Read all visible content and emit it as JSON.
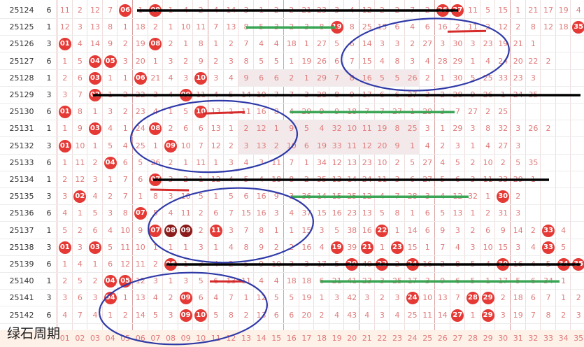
{
  "watermark": "绿石周期",
  "colors": {
    "ball": "#e53935",
    "ball_dark": "#8b1a1a",
    "miss_text": "#e07a7a",
    "black_line": "#000000",
    "green_line": "#3aa655",
    "red_line": "#d62b2b",
    "circle": "#2f3aa8"
  },
  "rows": [
    {
      "issue": "25124",
      "count": "6",
      "cells": [
        "11",
        "2",
        "12",
        "7",
        "06",
        "1",
        "09",
        "1",
        "4",
        "2",
        "4",
        "14",
        "3",
        "1",
        "2",
        "2",
        "21",
        "23",
        "3",
        "4",
        "12",
        "2",
        "2",
        "7",
        "2",
        "26",
        "27",
        "11",
        "5",
        "15",
        "1",
        "21",
        "17",
        "19",
        "4"
      ]
    },
    {
      "issue": "25125",
      "count": "1",
      "cells": [
        "12",
        "3",
        "13",
        "8",
        "1",
        "18",
        "2",
        "1",
        "10",
        "11",
        "7",
        "13",
        "8",
        "5",
        "3",
        "2",
        "3",
        "8",
        "19",
        "8",
        "25",
        "15",
        "6",
        "4",
        "6",
        "16",
        "2",
        "11",
        "2",
        "12",
        "2",
        "8",
        "12",
        "18",
        "35"
      ]
    },
    {
      "issue": "25126",
      "count": "3",
      "cells": [
        "01",
        "4",
        "14",
        "9",
        "2",
        "19",
        "08",
        "2",
        "1",
        "8",
        "1",
        "2",
        "7",
        "4",
        "4",
        "18",
        "1",
        "27",
        "5",
        "6",
        "14",
        "3",
        "3",
        "2",
        "27",
        "3",
        "30",
        "3",
        "23",
        "19",
        "21",
        "1"
      ]
    },
    {
      "issue": "25127",
      "count": "6",
      "cells": [
        "1",
        "5",
        "04",
        "05",
        "3",
        "20",
        "1",
        "3",
        "2",
        "9",
        "2",
        "3",
        "8",
        "5",
        "5",
        "1",
        "19",
        "26",
        "6",
        "7",
        "15",
        "4",
        "8",
        "3",
        "4",
        "28",
        "29",
        "1",
        "4",
        "24",
        "20",
        "22",
        "2"
      ]
    },
    {
      "issue": "25128",
      "count": "1",
      "cells": [
        "2",
        "6",
        "03",
        "1",
        "1",
        "06",
        "21",
        "4",
        "3",
        "10",
        "3",
        "4",
        "9",
        "6",
        "6",
        "2",
        "1",
        "29",
        "7",
        "8",
        "16",
        "5",
        "5",
        "26",
        "2",
        "1",
        "30",
        "5",
        "25",
        "33",
        "23",
        "3"
      ]
    },
    {
      "issue": "25129",
      "count": "3",
      "cells": [
        "3",
        "7",
        "02",
        "1",
        "2",
        "22",
        "3",
        "4",
        "09",
        "11",
        "4",
        "5",
        "14",
        "10",
        "7",
        "7",
        "3",
        "28",
        "8",
        "9",
        "17",
        "6",
        "6",
        "27",
        "3",
        "2",
        "28",
        "9",
        "26",
        "1",
        "24",
        "35"
      ]
    },
    {
      "issue": "25130",
      "count": "6",
      "cells": [
        "01",
        "8",
        "1",
        "3",
        "2",
        "23",
        "4",
        "1",
        "5",
        "10",
        "13",
        "1",
        "11",
        "16",
        "8",
        "4",
        "29",
        "9",
        "9",
        "18",
        "7",
        "7",
        "27",
        "1",
        "29",
        "3",
        "7",
        "27",
        "2",
        "25"
      ]
    },
    {
      "issue": "25131",
      "count": "1",
      "cells": [
        "1",
        "9",
        "03",
        "4",
        "1",
        "24",
        "08",
        "2",
        "6",
        "6",
        "13",
        "1",
        "2",
        "12",
        "1",
        "9",
        "5",
        "4",
        "32",
        "10",
        "11",
        "19",
        "8",
        "25",
        "3",
        "1",
        "29",
        "3",
        "8",
        "32",
        "3",
        "26",
        "2"
      ]
    },
    {
      "issue": "25132",
      "count": "3",
      "cells": [
        "01",
        "10",
        "1",
        "5",
        "4",
        "25",
        "1",
        "09",
        "10",
        "7",
        "12",
        "2",
        "3",
        "13",
        "2",
        "10",
        "6",
        "19",
        "33",
        "11",
        "12",
        "20",
        "9",
        "1",
        "4",
        "2",
        "3",
        "1",
        "4",
        "27",
        "3"
      ]
    },
    {
      "issue": "25133",
      "count": "6",
      "cells": [
        "1",
        "11",
        "2",
        "04",
        "6",
        "5",
        "26",
        "2",
        "1",
        "11",
        "1",
        "3",
        "4",
        "3",
        "11",
        "7",
        "1",
        "34",
        "12",
        "13",
        "23",
        "10",
        "2",
        "5",
        "27",
        "4",
        "5",
        "2",
        "10",
        "2",
        "5",
        "35"
      ]
    },
    {
      "issue": "25134",
      "count": "1",
      "cells": [
        "2",
        "12",
        "3",
        "1",
        "7",
        "6",
        "07",
        "3",
        "2",
        "1",
        "12",
        "4",
        "5",
        "4",
        "18",
        "8",
        "2",
        "35",
        "13",
        "14",
        "24",
        "11",
        "3",
        "6",
        "27",
        "5",
        "6",
        "3",
        "11",
        "33",
        "29",
        "1"
      ]
    },
    {
      "issue": "25135",
      "count": "3",
      "cells": [
        "3",
        "02",
        "4",
        "2",
        "7",
        "1",
        "8",
        "3",
        "10",
        "5",
        "1",
        "5",
        "6",
        "16",
        "9",
        "3",
        "36",
        "14",
        "15",
        "25",
        "12",
        "4",
        "7",
        "28",
        "3",
        "4",
        "12",
        "32",
        "1",
        "30",
        "2"
      ]
    },
    {
      "issue": "25136",
      "count": "6",
      "cells": [
        "4",
        "1",
        "5",
        "3",
        "8",
        "07",
        "5",
        "4",
        "11",
        "2",
        "6",
        "7",
        "15",
        "16",
        "3",
        "4",
        "37",
        "15",
        "16",
        "23",
        "13",
        "5",
        "8",
        "1",
        "6",
        "5",
        "13",
        "1",
        "2",
        "31",
        "3"
      ]
    },
    {
      "issue": "25137",
      "count": "1",
      "cells": [
        "5",
        "2",
        "6",
        "4",
        "10",
        "9",
        "07",
        "08",
        "09",
        "2",
        "11",
        "3",
        "7",
        "8",
        "1",
        "1",
        "15",
        "3",
        "5",
        "38",
        "16",
        "22",
        "1",
        "14",
        "6",
        "9",
        "3",
        "2",
        "6",
        "9",
        "14",
        "2",
        "33",
        "4"
      ]
    },
    {
      "issue": "25138",
      "count": "3",
      "cells": [
        "01",
        "3",
        "03",
        "5",
        "11",
        "10",
        "1",
        "1",
        "1",
        "3",
        "1",
        "4",
        "8",
        "9",
        "2",
        "2",
        "16",
        "4",
        "19",
        "39",
        "21",
        "1",
        "23",
        "15",
        "1",
        "7",
        "4",
        "3",
        "10",
        "15",
        "3",
        "4",
        "33",
        "5"
      ]
    },
    {
      "issue": "25139",
      "count": "6",
      "cells": [
        "1",
        "4",
        "1",
        "6",
        "12",
        "11",
        "2",
        "06",
        "1",
        "3",
        "4",
        "2",
        "5",
        "9",
        "10",
        "3",
        "3",
        "17",
        "5",
        "20",
        "40",
        "22",
        "2",
        "24",
        "16",
        "2",
        "8",
        "5",
        "4",
        "30",
        "16",
        "4",
        "5",
        "34",
        "35"
      ]
    },
    {
      "issue": "25140",
      "count": "1",
      "cells": [
        "2",
        "5",
        "2",
        "04",
        "05",
        "12",
        "3",
        "1",
        "3",
        "5",
        "6",
        "13",
        "11",
        "4",
        "4",
        "18",
        "18",
        "6",
        "21",
        "41",
        "23",
        "3",
        "25",
        "17",
        "3",
        "9",
        "6",
        "5",
        "1",
        "17",
        "5",
        "6",
        "34",
        "1"
      ]
    },
    {
      "issue": "25141",
      "count": "3",
      "cells": [
        "3",
        "6",
        "3",
        "04",
        "1",
        "13",
        "4",
        "2",
        "09",
        "6",
        "4",
        "7",
        "1",
        "12",
        "5",
        "5",
        "19",
        "1",
        "3",
        "42",
        "3",
        "2",
        "3",
        "24",
        "10",
        "13",
        "7",
        "28",
        "29",
        "2",
        "18",
        "6",
        "7",
        "1",
        "2"
      ]
    },
    {
      "issue": "25142",
      "count": "6",
      "cells": [
        "4",
        "7",
        "4",
        "1",
        "2",
        "14",
        "5",
        "3",
        "09",
        "10",
        "5",
        "8",
        "2",
        "13",
        "6",
        "6",
        "20",
        "2",
        "4",
        "43",
        "4",
        "3",
        "4",
        "25",
        "11",
        "14",
        "27",
        "1",
        "29",
        "3",
        "19",
        "7",
        "8",
        "2",
        "3"
      ]
    }
  ],
  "bottom_row": [
    "01",
    "02",
    "03",
    "04",
    "05",
    "06",
    "07",
    "08",
    "09",
    "10",
    "11",
    "12",
    "13",
    "14",
    "15",
    "16",
    "17",
    "18",
    "19",
    "20",
    "21",
    "22",
    "23",
    "24",
    "25",
    "26",
    "27",
    "28",
    "29",
    "30",
    "31",
    "32",
    "33",
    "34",
    "35"
  ]
}
